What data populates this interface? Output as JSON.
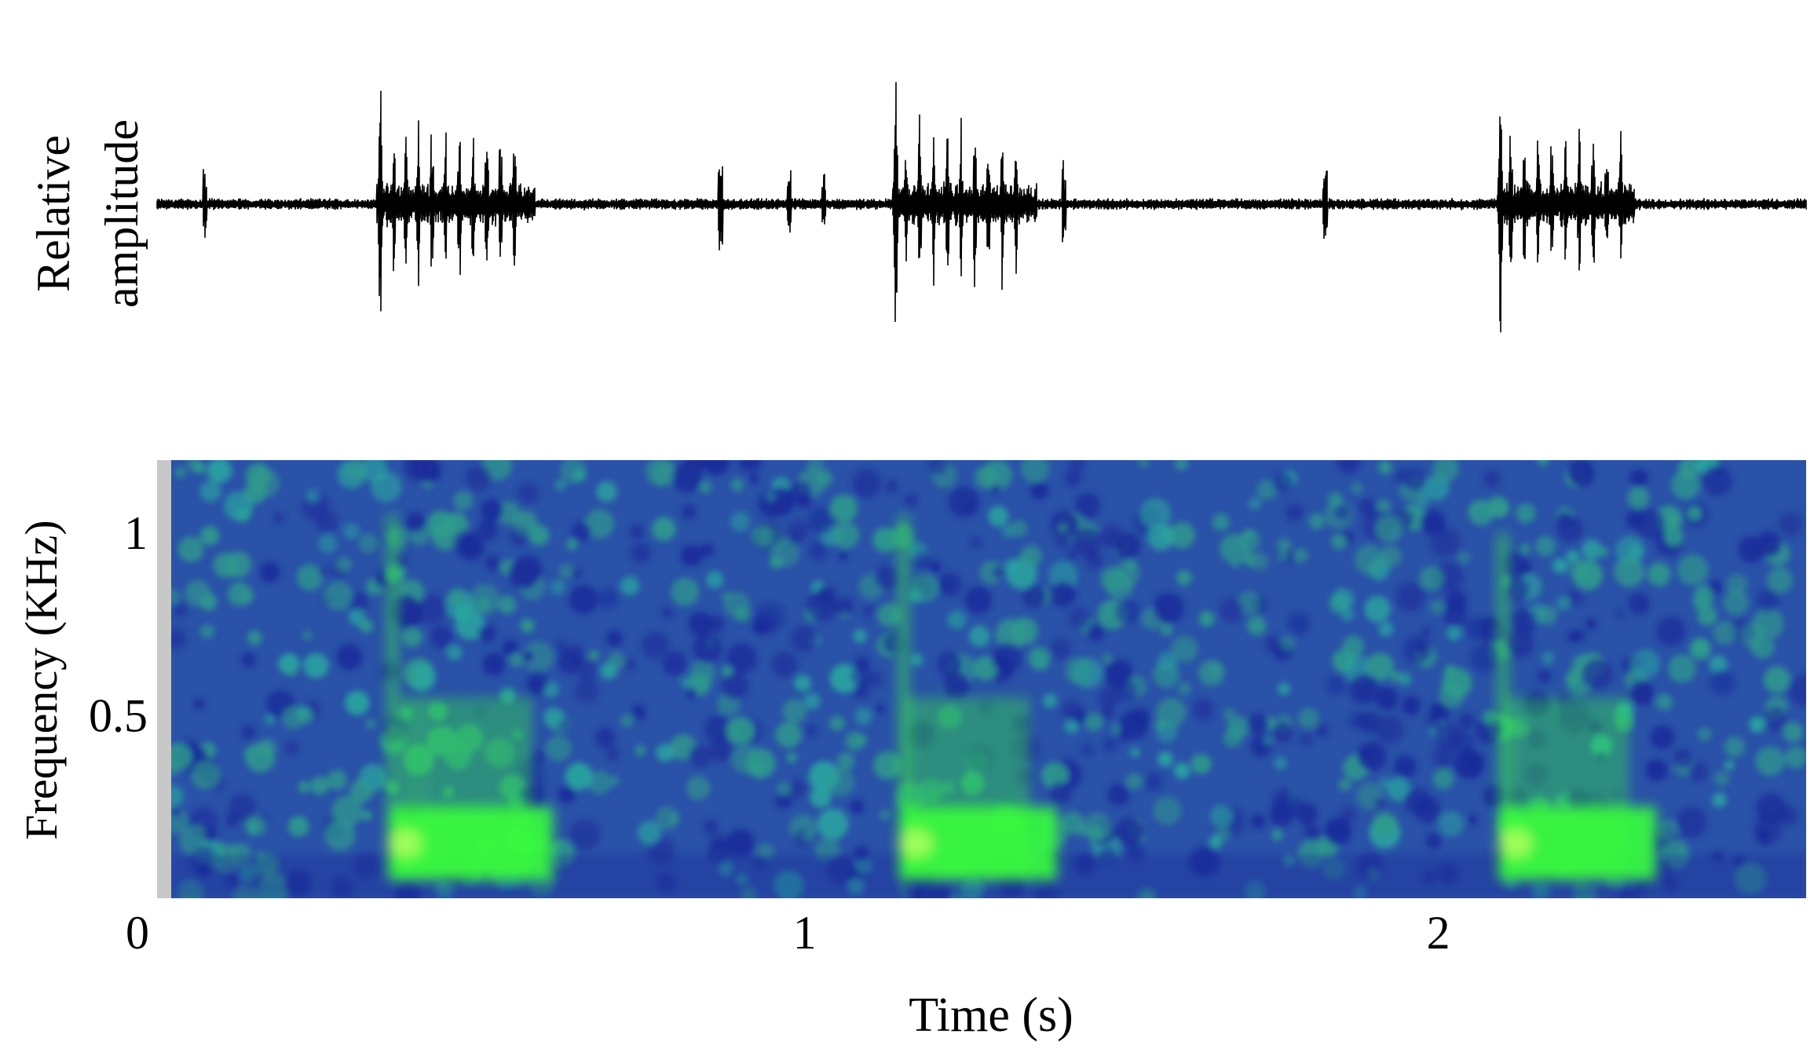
{
  "chart_data": [
    {
      "type": "line",
      "panel": "waveform",
      "ylabel_lines": [
        "Relative",
        "amplitude"
      ],
      "xlim": [
        0,
        2.4
      ],
      "line_color": "#000000",
      "note": "oscillogram of three call bouts",
      "bouts": [
        {
          "start": 0.32,
          "end": 0.55,
          "pulses": [
            0.325,
            0.345,
            0.362,
            0.38,
            0.4,
            0.42,
            0.44,
            0.46,
            0.48,
            0.5,
            0.52
          ]
        },
        {
          "start": 1.07,
          "end": 1.28,
          "pulses": [
            1.075,
            1.09,
            1.11,
            1.13,
            1.15,
            1.17,
            1.19,
            1.21,
            1.23,
            1.25
          ]
        },
        {
          "start": 1.95,
          "end": 2.15,
          "pulses": [
            1.955,
            1.97,
            1.99,
            2.01,
            2.03,
            2.05,
            2.07,
            2.09,
            2.11,
            2.13
          ]
        }
      ],
      "isolated_spikes": [
        0.07,
        0.82,
        0.92,
        0.97,
        1.32,
        1.7
      ]
    },
    {
      "type": "heatmap",
      "panel": "spectrogram",
      "xlabel": "Time (s)",
      "ylabel": "Frequency (KHz)",
      "xlim": [
        0,
        2.4
      ],
      "ylim": [
        0,
        1.2
      ],
      "xticks": [
        0,
        1,
        2
      ],
      "xtick_labels": [
        "0",
        "1",
        "2"
      ],
      "yticks": [
        0.5,
        1
      ],
      "ytick_labels": [
        "0.5",
        "1"
      ],
      "colormap": {
        "low": "#1a2b9a",
        "mid": "#2f9c8c",
        "high": "#39ff3a"
      },
      "energy_regions": [
        {
          "t_start": 0.32,
          "t_end": 0.56,
          "f_max": 1.05,
          "peak_f": 0.15
        },
        {
          "t_start": 1.07,
          "t_end": 1.3,
          "f_max": 1.05,
          "peak_f": 0.15
        },
        {
          "t_start": 1.95,
          "t_end": 2.18,
          "f_max": 1.0,
          "peak_f": 0.15
        }
      ]
    }
  ]
}
